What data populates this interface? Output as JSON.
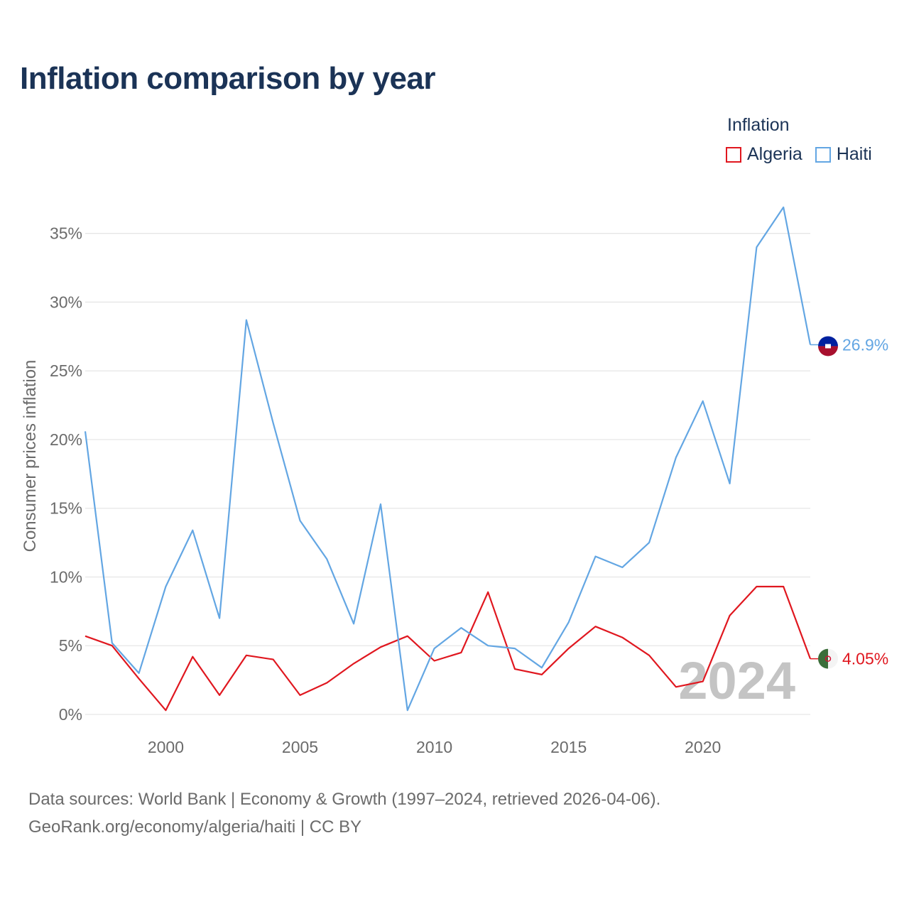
{
  "title": "Inflation comparison by year",
  "legend": {
    "title": "Inflation",
    "items": [
      {
        "name": "Algeria",
        "color": "#e0171f"
      },
      {
        "name": "Haiti",
        "color": "#63a6e3"
      }
    ]
  },
  "footer": {
    "line1": "Data sources: World Bank | Economy & Growth (1997–2024, retrieved 2026-04-06).",
    "line2": "GeoRank.org/economy/algeria/haiti | CC BY"
  },
  "chart_data": {
    "type": "line",
    "title": "Inflation comparison by year",
    "xlabel": "",
    "ylabel": "Consumer prices inflation",
    "xlim": [
      1997,
      2024
    ],
    "ylim": [
      0,
      37
    ],
    "x_ticks": [
      2000,
      2005,
      2010,
      2015,
      2020
    ],
    "y_ticks": [
      0,
      5,
      10,
      15,
      20,
      25,
      30,
      35
    ],
    "y_tick_labels": [
      "0%",
      "5%",
      "10%",
      "15%",
      "20%",
      "25%",
      "30%",
      "35%"
    ],
    "grid": true,
    "watermark_year": "2024",
    "x": [
      1997,
      1998,
      1999,
      2000,
      2001,
      2002,
      2003,
      2004,
      2005,
      2006,
      2007,
      2008,
      2009,
      2010,
      2011,
      2012,
      2013,
      2014,
      2015,
      2016,
      2017,
      2018,
      2019,
      2020,
      2021,
      2022,
      2023,
      2024
    ],
    "series": [
      {
        "name": "Algeria",
        "color": "#e0171f",
        "end_label": "4.05%",
        "values": [
          5.7,
          5.0,
          2.6,
          0.3,
          4.2,
          1.4,
          4.3,
          4.0,
          1.4,
          2.3,
          3.7,
          4.9,
          5.7,
          3.9,
          4.5,
          8.9,
          3.3,
          2.9,
          4.8,
          6.4,
          5.6,
          4.3,
          2.0,
          2.4,
          7.2,
          9.3,
          9.3,
          4.05
        ]
      },
      {
        "name": "Haiti",
        "color": "#63a6e3",
        "end_label": "26.9%",
        "values": [
          20.6,
          5.2,
          3.0,
          9.3,
          13.4,
          7.0,
          28.7,
          21.2,
          14.1,
          11.3,
          6.6,
          15.3,
          0.3,
          4.8,
          6.3,
          5.0,
          4.8,
          3.4,
          6.7,
          11.5,
          10.7,
          12.5,
          18.7,
          22.8,
          16.8,
          34.0,
          36.9,
          26.9
        ]
      }
    ]
  }
}
